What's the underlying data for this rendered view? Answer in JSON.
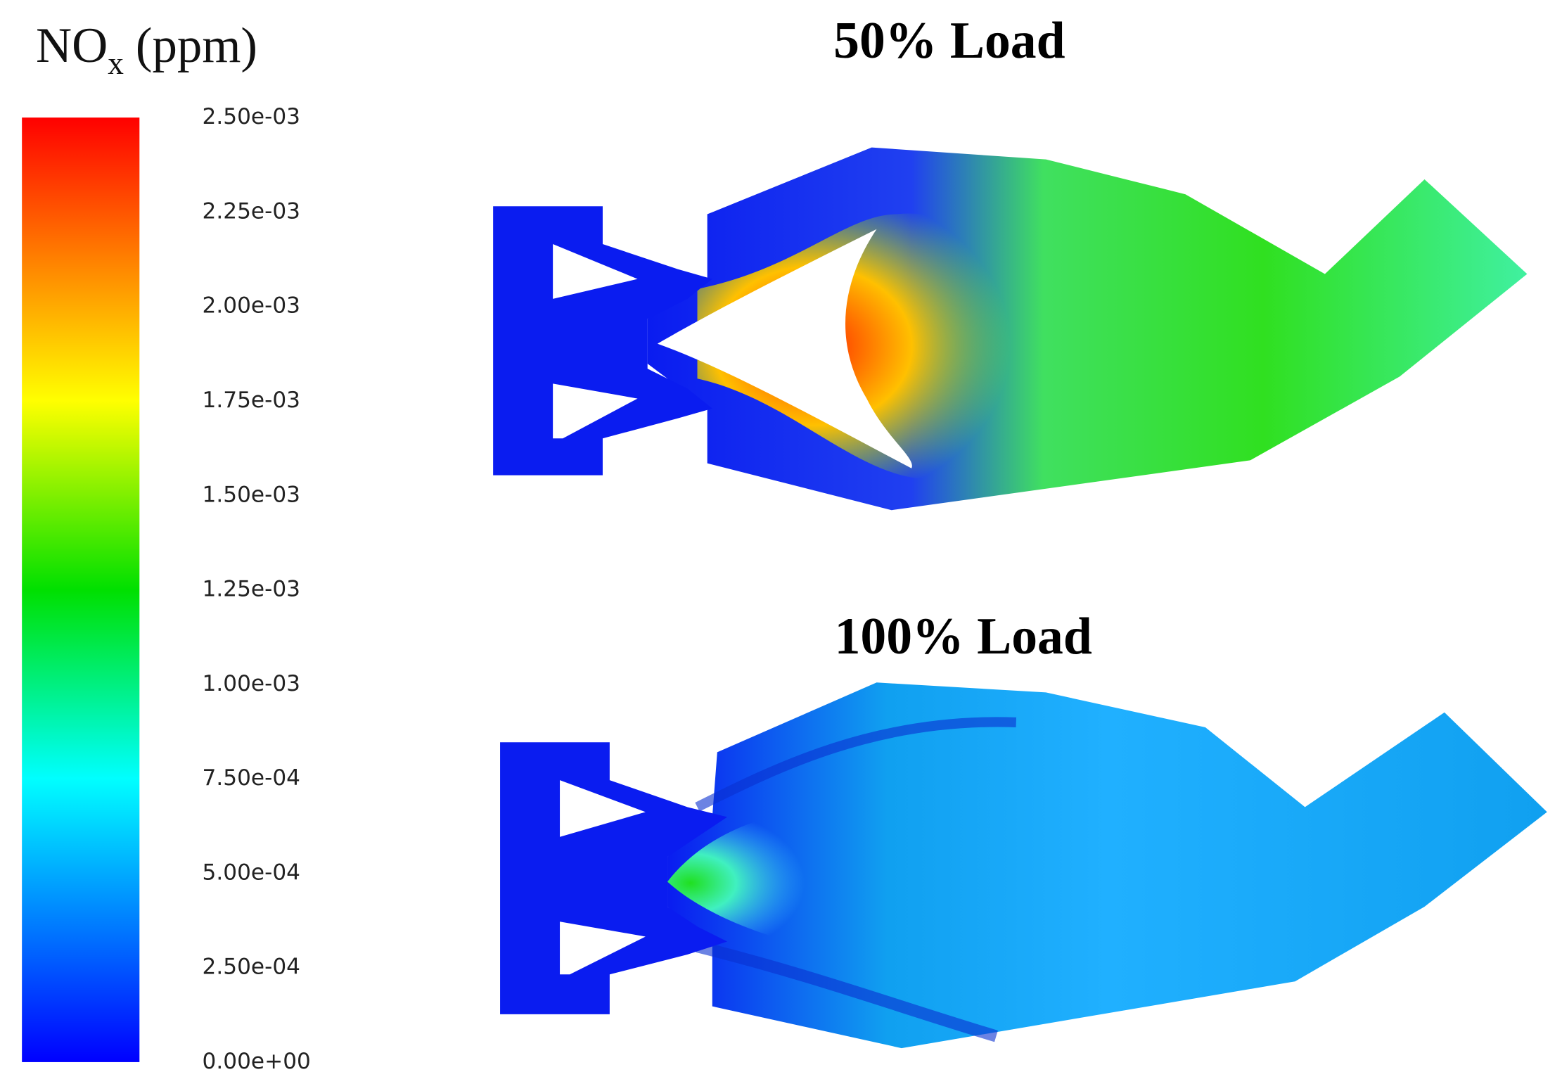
{
  "legend": {
    "title": "NO",
    "title_subscript": "x",
    "title_unit": "(ppm)",
    "ticks": [
      "2.50e-03",
      "2.25e-03",
      "2.00e-03",
      "1.75e-03",
      "1.50e-03",
      "1.25e-03",
      "1.00e-03",
      "7.50e-04",
      "5.00e-04",
      "2.50e-04",
      "0.00e+00"
    ]
  },
  "panels": [
    {
      "title": "50% Load"
    },
    {
      "title": "100% Load"
    }
  ]
}
